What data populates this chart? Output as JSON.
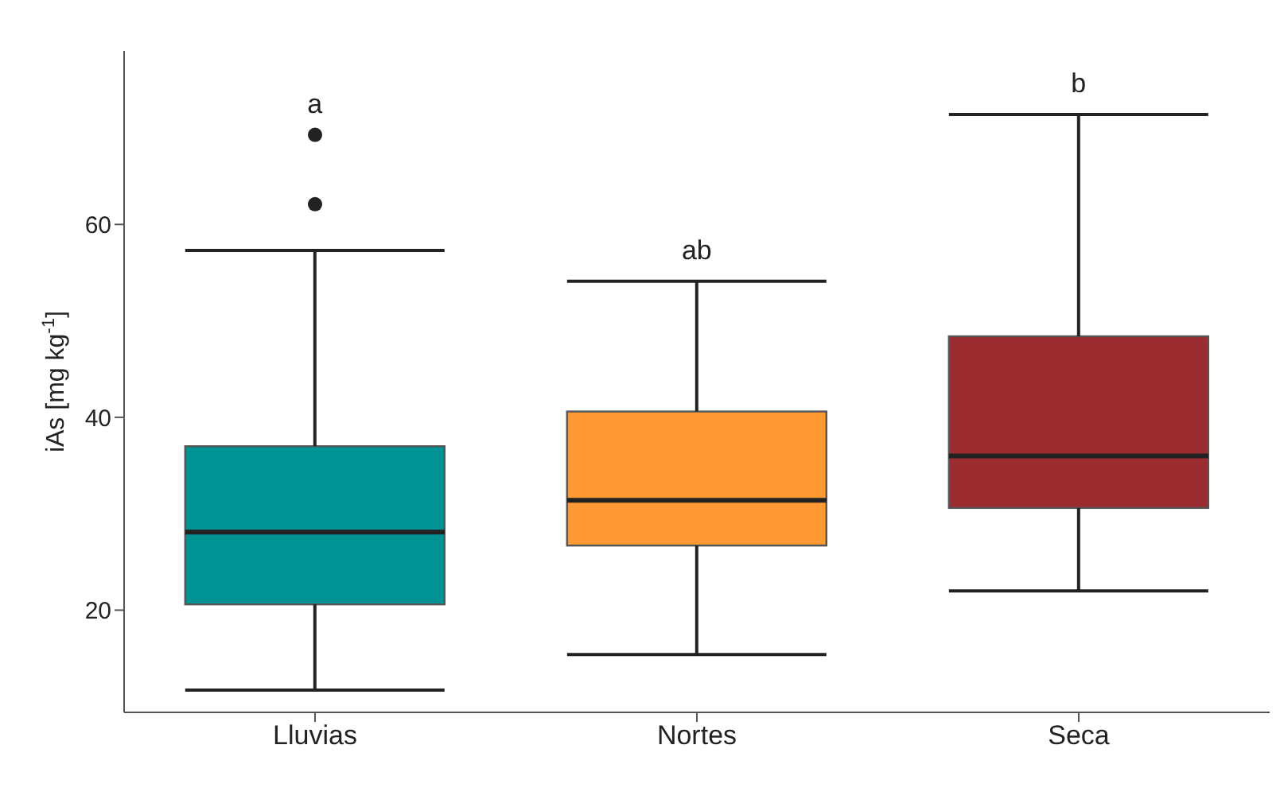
{
  "chart_data": {
    "type": "box",
    "categories": [
      "Lluvias",
      "Nortes",
      "Seca"
    ],
    "boxes": [
      {
        "low": 11.7,
        "q1": 20.6,
        "median": 28.1,
        "q3": 37.0,
        "high": 57.3,
        "outliers": [
          62.1,
          69.3
        ]
      },
      {
        "low": 15.4,
        "q1": 26.7,
        "median": 31.4,
        "q3": 40.6,
        "high": 54.1
      },
      {
        "low": 22.0,
        "q1": 30.6,
        "median": 36.0,
        "q3": 48.4,
        "high": 71.4
      }
    ],
    "colors": [
      "#009393",
      "#ff9933",
      "#9b2d30"
    ],
    "ylabel": "iAs [mg kg$^{-1}$]",
    "ylim": [
      9.4,
      78
    ],
    "yticks": [
      20,
      40,
      60
    ],
    "grid": false,
    "legend": false,
    "annotations": [
      "a",
      "ab",
      "b"
    ]
  }
}
